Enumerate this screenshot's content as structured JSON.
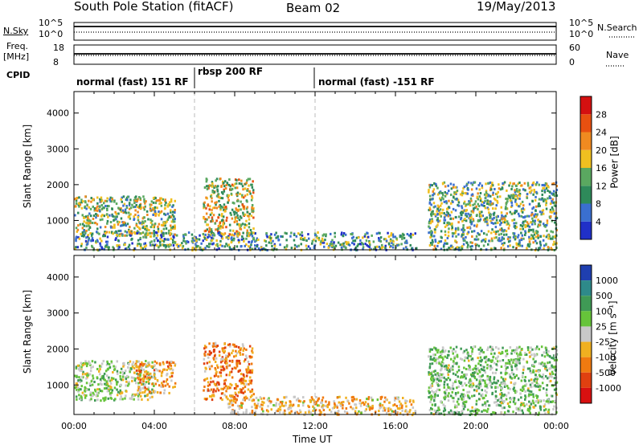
{
  "header": {
    "station": "South Pole Station (fitACF)",
    "beam": "Beam 02",
    "date": "19/May/2013"
  },
  "params": {
    "nsky_label": "N.Sky",
    "nsearch_label": "N.Search",
    "nsky_ticks": [
      "10^5",
      "10^0"
    ],
    "nsearch_ticks": [
      "10^5",
      "10^0"
    ],
    "freq_label_1": "Freq.",
    "freq_label_2": "[MHz]",
    "freq_ticks": [
      "18",
      "8"
    ],
    "nave_label": "Nave",
    "nave_ticks": [
      "60",
      "0"
    ],
    "cpid_label": "CPID",
    "cpid_segments": [
      {
        "label": "normal (fast) 151 RF",
        "start_hour": 0,
        "end_hour": 6
      },
      {
        "label": "rbsp 200 RF",
        "start_hour": 6,
        "end_hour": 12
      },
      {
        "label": "normal (fast) -151 RF",
        "start_hour": 12,
        "end_hour": 24
      }
    ]
  },
  "x_axis": {
    "label": "Time UT",
    "ticks": [
      "00:00",
      "04:00",
      "08:00",
      "12:00",
      "16:00",
      "20:00",
      "00:00"
    ],
    "range_hours": [
      0,
      24
    ]
  },
  "power_panel": {
    "ylabel": "Slant Range [km]",
    "yticks": [
      "1000",
      "2000",
      "3000",
      "4000"
    ],
    "colorbar_title": "Power [dB]",
    "colorbar_ticks": [
      "4",
      "8",
      "12",
      "16",
      "20",
      "24",
      "28"
    ],
    "colors": [
      "#2030c8",
      "#3a6fd0",
      "#2e8a5a",
      "#5aa860",
      "#f0c020",
      "#f08a20",
      "#e85010",
      "#d41010"
    ]
  },
  "velocity_panel": {
    "ylabel": "Slant Range [km]",
    "yticks": [
      "1000",
      "2000",
      "3000",
      "4000"
    ],
    "colorbar_title": "Velocity [m s⁻¹]",
    "colorbar_ticks": [
      "1000",
      "500",
      "100",
      "25",
      "-25",
      "-100",
      "-500",
      "-1000"
    ],
    "colors": [
      "#1f3fb0",
      "#2e8a8a",
      "#3f9a55",
      "#66c43a",
      "#c8c8c8",
      "#f0b020",
      "#f07a10",
      "#e04010",
      "#d81010"
    ]
  },
  "chart_data": [
    {
      "type": "heatmap",
      "title": "South Pole Station (fitACF) Beam 02",
      "quantity": "Power [dB]",
      "xlabel": "Time UT",
      "ylabel": "Slant Range [km]",
      "xlim_hours": [
        0,
        24
      ],
      "ylim_km": [
        180,
        4600
      ],
      "color_scale": [
        0,
        30
      ],
      "regions": [
        {
          "t0": 0.0,
          "t1": 5.0,
          "r0": 600,
          "r1": 1700,
          "level": 14
        },
        {
          "t0": 6.4,
          "t1": 8.9,
          "r0": 600,
          "r1": 2200,
          "level": 16
        },
        {
          "t0": 0.0,
          "t1": 17.0,
          "r0": 200,
          "r1": 700,
          "level": 10
        },
        {
          "t0": 17.6,
          "t1": 24.0,
          "r0": 200,
          "r1": 2100,
          "level": 12
        }
      ]
    },
    {
      "type": "heatmap",
      "title": "South Pole Station (fitACF) Beam 02",
      "quantity": "Velocity [m s-1]",
      "xlabel": "Time UT",
      "ylabel": "Slant Range [km]",
      "xlim_hours": [
        0,
        24
      ],
      "ylim_km": [
        180,
        4600
      ],
      "color_scale": [
        -1000,
        1000
      ],
      "regions": [
        {
          "t0": 0.0,
          "t1": 4.0,
          "r0": 600,
          "r1": 1700,
          "level": 100
        },
        {
          "t0": 3.0,
          "t1": 5.0,
          "r0": 800,
          "r1": 1700,
          "level": -300
        },
        {
          "t0": 6.4,
          "t1": 8.9,
          "r0": 600,
          "r1": 2200,
          "level": -400
        },
        {
          "t0": 7.6,
          "t1": 17.0,
          "r0": 200,
          "r1": 700,
          "level": -200
        },
        {
          "t0": 17.6,
          "t1": 24.0,
          "r0": 200,
          "r1": 2100,
          "level": 200
        }
      ]
    }
  ]
}
